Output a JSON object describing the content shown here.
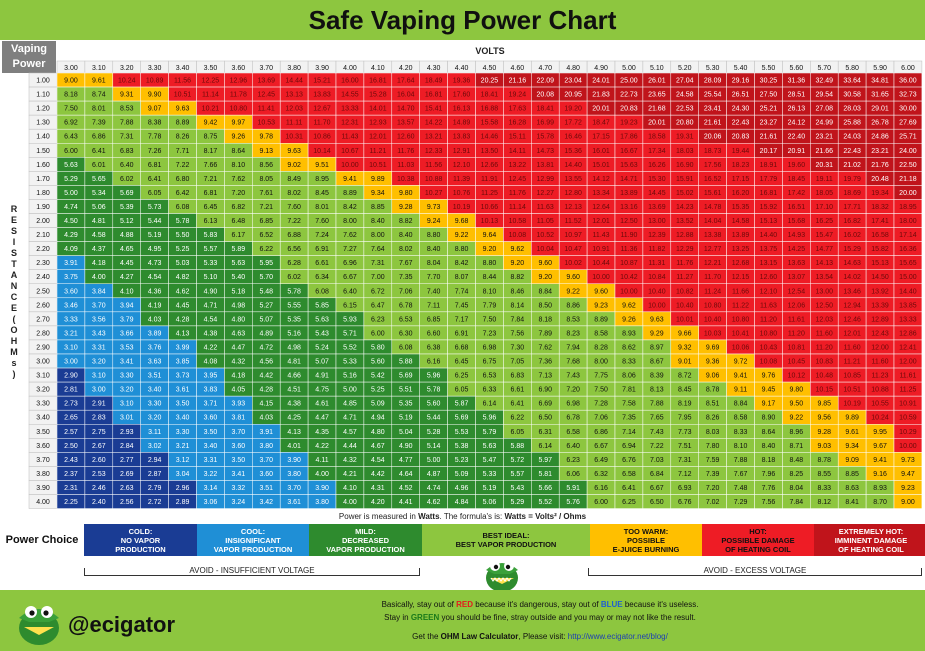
{
  "title": "Safe Vaping Power Chart",
  "corner_label": [
    "Vaping",
    "Power"
  ],
  "volts_label": "VOLTS",
  "resistance_label": [
    "R",
    "E",
    "S",
    "I",
    "S",
    "T",
    "A",
    "N",
    "C",
    "E",
    "(",
    "O",
    "H",
    "M",
    "s",
    ")"
  ],
  "colors": {
    "cold": "#1a3c94",
    "cool": "#1f8fd6",
    "mild": "#2e8b2e",
    "best": "#8dc63f",
    "warm": "#ffbf00",
    "hot": "#ee1c25",
    "extreme": "#c0141b"
  },
  "chart_data": {
    "type": "table",
    "volts": [
      "3.00",
      "3.10",
      "3.20",
      "3.30",
      "3.40",
      "3.50",
      "3.60",
      "3.70",
      "3.80",
      "3.90",
      "4.00",
      "4.10",
      "4.20",
      "4.30",
      "4.40",
      "4.50",
      "4.60",
      "4.70",
      "4.80",
      "4.90",
      "5.00",
      "5.10",
      "5.20",
      "5.30",
      "5.40",
      "5.50",
      "5.60",
      "5.70",
      "5.80",
      "5.90",
      "6.00"
    ],
    "ohms": [
      "1.00",
      "1.10",
      "1.20",
      "1.30",
      "1.40",
      "1.50",
      "1.60",
      "1.70",
      "1.80",
      "1.90",
      "2.00",
      "2.10",
      "2.20",
      "2.30",
      "2.40",
      "2.50",
      "2.60",
      "2.70",
      "2.80",
      "2.90",
      "3.00",
      "3.10",
      "3.20",
      "3.30",
      "3.40",
      "3.50",
      "3.60",
      "3.70",
      "3.80",
      "3.90",
      "4.00"
    ],
    "formula": "Watts = Volts² / Ohms",
    "legend": [
      {
        "key": "cold",
        "label": [
          "COLD:",
          "NO VAPOR",
          "PRODUCTION"
        ]
      },
      {
        "key": "cool",
        "label": [
          "COOL:",
          "INSIGNIFICANT",
          "VAPOR PRODUCTION"
        ]
      },
      {
        "key": "mild",
        "label": [
          "MILD:",
          "DECREASED",
          "VAPOR PRODUCTION"
        ]
      },
      {
        "key": "best",
        "label": [
          "BEST IDEAL:",
          "BEST VAPOR PRODUCTION"
        ]
      },
      {
        "key": "warm",
        "label": [
          "TOO WARM:",
          "POSSIBLE",
          "E-JUICE BURNING"
        ]
      },
      {
        "key": "hot",
        "label": [
          "HOT:",
          "POSSIBLE DAMAGE",
          "OF HEATING COIL"
        ]
      },
      {
        "key": "extreme",
        "label": [
          "EXTREMELY HOT:",
          "IMMINENT DAMAGE",
          "OF HEATING COIL"
        ]
      }
    ]
  },
  "note": {
    "prefix": "Power is measured in ",
    "unit": "Watts",
    "middle": ". The formula's is:  ",
    "formula": "Watts = Volts² / Ohms"
  },
  "power_choice_label": "Power Choice",
  "avoid_low": "AVOID - INSUFFICIENT VOLTAGE",
  "avoid_high": "AVOID - EXCESS VOLTAGE",
  "brand": "@ecigator",
  "footer": {
    "line1_a": "Basically, stay out of ",
    "line1_red": "RED",
    "line1_b": " because it's dangerous, stay out of ",
    "line1_blue": "BLUE",
    "line1_c": " because it's useless.",
    "line2_a": "Stay in ",
    "line2_green": "GREEN",
    "line2_b": " you should be fine, stray outside and you may or may not like the result.",
    "line3_a": "Get the ",
    "line3_bold": "OHM Law Calculator",
    "line3_b": ", Please visit:  ",
    "line3_link": "http://www.ecigator.net/blog/"
  }
}
